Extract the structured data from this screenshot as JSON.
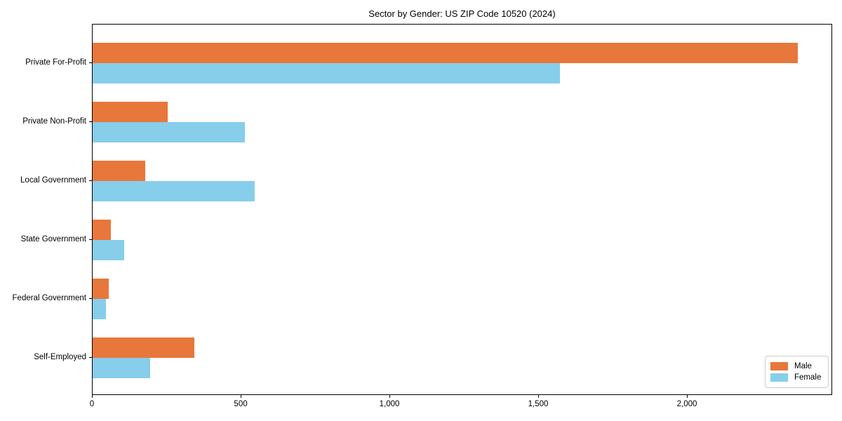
{
  "title": "Sector by Gender: US ZIP Code 10520 (2024)",
  "chart_data": {
    "type": "bar",
    "orientation": "horizontal",
    "title": "Sector by Gender: US ZIP Code 10520 (2024)",
    "categories": [
      "Private For-Profit",
      "Private Non-Profit",
      "Local Government",
      "State Government",
      "Federal Government",
      "Self-Employed"
    ],
    "series": [
      {
        "name": "Male",
        "color": "#e8773b",
        "values": [
          2370,
          252,
          178,
          62,
          54,
          342
        ]
      },
      {
        "name": "Female",
        "color": "#87ceeb",
        "values": [
          1570,
          512,
          545,
          107,
          45,
          193
        ]
      }
    ],
    "xlabel": "",
    "ylabel": "",
    "xlim": [
      0,
      2488
    ],
    "x_ticks": [
      0,
      500,
      1000,
      1500,
      2000
    ],
    "x_tick_labels": [
      "0",
      "500",
      "1,000",
      "1,500",
      "2,000"
    ],
    "grid": false,
    "legend_position": "lower right",
    "frame": "full-box"
  }
}
